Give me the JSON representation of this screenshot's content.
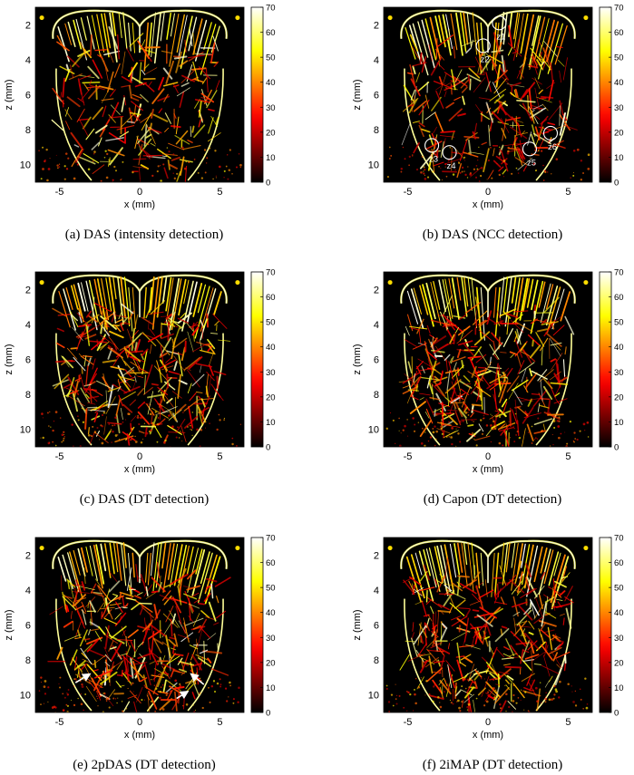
{
  "chart_data": [
    {
      "type": "heatmap",
      "caption": "(a) DAS (intensity detection)",
      "xlabel": "x (mm)",
      "ylabel": "z (mm)",
      "xlim": [
        -6.5,
        6.5
      ],
      "ylim": [
        1,
        11
      ],
      "xticks": [
        -5,
        0,
        5
      ],
      "xtick_labels": [
        "-5",
        "0",
        "5"
      ],
      "yticks": [
        2,
        4,
        6,
        8,
        10
      ],
      "ytick_labels": [
        "2",
        "4",
        "6",
        "8",
        "10"
      ],
      "colorbar": {
        "range": [
          0,
          70
        ],
        "ticks": [
          0,
          10,
          20,
          30,
          40,
          50,
          60,
          70
        ],
        "tick_labels": [
          "0",
          "10",
          "20",
          "30",
          "40",
          "50",
          "60",
          "70"
        ]
      },
      "colormap": "hot",
      "density": 0.55,
      "seed": 11,
      "annotations": {
        "labels": [],
        "arrows": []
      }
    },
    {
      "type": "heatmap",
      "caption": "(b) DAS (NCC detection)",
      "xlabel": "x (mm)",
      "ylabel": "z (mm)",
      "xlim": [
        -6.5,
        6.5
      ],
      "ylim": [
        1,
        11
      ],
      "xticks": [
        -5,
        0,
        5
      ],
      "xtick_labels": [
        "-5",
        "0",
        "5"
      ],
      "yticks": [
        2,
        4,
        6,
        8,
        10
      ],
      "ytick_labels": [
        "2",
        "4",
        "6",
        "8",
        "10"
      ],
      "colorbar": {
        "range": [
          0,
          70
        ],
        "ticks": [
          0,
          10,
          20,
          30,
          40,
          50,
          60,
          70
        ],
        "tick_labels": [
          "0",
          "10",
          "20",
          "30",
          "40",
          "50",
          "60",
          "70"
        ]
      },
      "colormap": "hot",
      "density": 0.8,
      "seed": 23,
      "annotations": {
        "labels": [
          {
            "id": "z1",
            "text": "z1",
            "x": 0.7,
            "z": 1.9
          },
          {
            "id": "z2",
            "text": "z2",
            "x": -0.3,
            "z": 3.2
          },
          {
            "id": "z3",
            "text": "z3",
            "x": -3.5,
            "z": 8.9
          },
          {
            "id": "z4",
            "text": "z4",
            "x": -2.4,
            "z": 9.3
          },
          {
            "id": "z5",
            "text": "z5",
            "x": 2.6,
            "z": 9.1
          },
          {
            "id": "z6",
            "text": "z6",
            "x": 3.9,
            "z": 8.2
          }
        ],
        "arrows": []
      }
    },
    {
      "type": "heatmap",
      "caption": "(c) DAS (DT detection)",
      "xlabel": "x (mm)",
      "ylabel": "z (mm)",
      "xlim": [
        -6.5,
        6.5
      ],
      "ylim": [
        1,
        11
      ],
      "xticks": [
        -5,
        0,
        5
      ],
      "xtick_labels": [
        "-5",
        "0",
        "5"
      ],
      "yticks": [
        2,
        4,
        6,
        8,
        10
      ],
      "ytick_labels": [
        "2",
        "4",
        "6",
        "8",
        "10"
      ],
      "colorbar": {
        "range": [
          0,
          70
        ],
        "ticks": [
          0,
          10,
          20,
          30,
          40,
          50,
          60,
          70
        ],
        "tick_labels": [
          "0",
          "10",
          "20",
          "30",
          "40",
          "50",
          "60",
          "70"
        ]
      },
      "colormap": "hot",
      "density": 1.0,
      "seed": 37,
      "annotations": {
        "labels": [],
        "arrows": []
      }
    },
    {
      "type": "heatmap",
      "caption": "(d) Capon (DT detection)",
      "xlabel": "x (mm)",
      "ylabel": "z (mm)",
      "xlim": [
        -6.5,
        6.5
      ],
      "ylim": [
        1,
        11
      ],
      "xticks": [
        -5,
        0,
        5
      ],
      "xtick_labels": [
        "-5",
        "0",
        "5"
      ],
      "yticks": [
        2,
        4,
        6,
        8,
        10
      ],
      "ytick_labels": [
        "2",
        "4",
        "6",
        "8",
        "10"
      ],
      "colorbar": {
        "range": [
          0,
          70
        ],
        "ticks": [
          0,
          10,
          20,
          30,
          40,
          50,
          60,
          70
        ],
        "tick_labels": [
          "0",
          "10",
          "20",
          "30",
          "40",
          "50",
          "60",
          "70"
        ]
      },
      "colormap": "hot",
      "density": 1.0,
      "seed": 41,
      "annotations": {
        "labels": [],
        "arrows": []
      }
    },
    {
      "type": "heatmap",
      "caption": "(e) 2pDAS (DT detection)",
      "xlabel": "x (mm)",
      "ylabel": "z (mm)",
      "xlim": [
        -6.5,
        6.5
      ],
      "ylim": [
        1,
        11
      ],
      "xticks": [
        -5,
        0,
        5
      ],
      "xtick_labels": [
        "-5",
        "0",
        "5"
      ],
      "yticks": [
        2,
        4,
        6,
        8,
        10
      ],
      "ytick_labels": [
        "2",
        "4",
        "6",
        "8",
        "10"
      ],
      "colorbar": {
        "range": [
          0,
          70
        ],
        "ticks": [
          0,
          10,
          20,
          30,
          40,
          50,
          60,
          70
        ],
        "tick_labels": [
          "0",
          "10",
          "20",
          "30",
          "40",
          "50",
          "60",
          "70"
        ]
      },
      "colormap": "hot",
      "density": 1.0,
      "seed": 53,
      "annotations": {
        "labels": [],
        "arrows": [
          {
            "from": [
              -4.0,
              9.3
            ],
            "to": [
              -3.1,
              8.8
            ]
          },
          {
            "from": [
              4.0,
              9.4
            ],
            "to": [
              3.2,
              8.8
            ]
          },
          {
            "from": [
              2.3,
              10.2
            ],
            "to": [
              3.0,
              9.8
            ]
          }
        ]
      }
    },
    {
      "type": "heatmap",
      "caption": "(f) 2iMAP (DT detection)",
      "xlabel": "x (mm)",
      "ylabel": "z (mm)",
      "xlim": [
        -6.5,
        6.5
      ],
      "ylim": [
        1,
        11
      ],
      "xticks": [
        -5,
        0,
        5
      ],
      "xtick_labels": [
        "-5",
        "0",
        "5"
      ],
      "yticks": [
        2,
        4,
        6,
        8,
        10
      ],
      "ytick_labels": [
        "2",
        "4",
        "6",
        "8",
        "10"
      ],
      "colorbar": {
        "range": [
          0,
          70
        ],
        "ticks": [
          0,
          10,
          20,
          30,
          40,
          50,
          60,
          70
        ],
        "tick_labels": [
          "0",
          "10",
          "20",
          "30",
          "40",
          "50",
          "60",
          "70"
        ]
      },
      "colormap": "hot",
      "density": 1.0,
      "seed": 67,
      "annotations": {
        "labels": [],
        "arrows": []
      }
    }
  ]
}
